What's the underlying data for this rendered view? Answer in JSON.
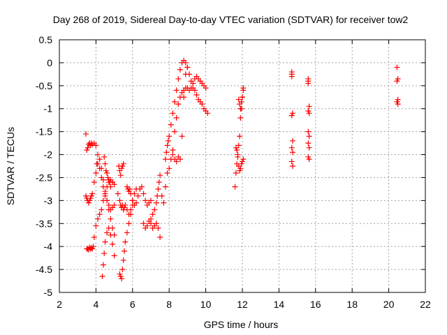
{
  "chart_data": {
    "type": "scatter",
    "title": "Day 268 of 2019, Sidereal Day-to-day VTEC variation (SDTVAR) for receiver tow2",
    "xlabel": "GPS time / hours",
    "ylabel": "SDTVAR / TECUs",
    "xlim": [
      2,
      22
    ],
    "ylim": [
      -5,
      0.5
    ],
    "xticks": [
      2,
      4,
      6,
      8,
      10,
      12,
      14,
      16,
      18,
      20,
      22
    ],
    "yticks": [
      -5,
      -4.5,
      -4,
      -3.5,
      -3,
      -2.5,
      -2,
      -1.5,
      -1,
      -0.5,
      0,
      0.5
    ],
    "grid": true,
    "marker": "+",
    "color": "#ff0000",
    "series": [
      {
        "name": "SDTVAR",
        "segments": [
          {
            "x": [
              3.45,
              3.5,
              3.55,
              3.6,
              3.65,
              3.7,
              3.75,
              3.8,
              3.9,
              4.0,
              4.1,
              4.2,
              4.3,
              4.4,
              4.5,
              4.6,
              4.7,
              4.8,
              4.9,
              5.0
            ],
            "y": [
              -1.55,
              -1.9,
              -1.85,
              -1.78,
              -1.75,
              -1.8,
              -1.75,
              -1.78,
              -1.75,
              -1.8,
              -2.0,
              -2.1,
              -2.3,
              -2.55,
              -2.8,
              -3.0,
              -3.2,
              -3.4,
              -3.6,
              -3.75
            ]
          },
          {
            "x": [
              3.45,
              3.5,
              3.55,
              3.6,
              3.65,
              3.7,
              3.75,
              3.8,
              3.9,
              4.0,
              4.05,
              4.1,
              4.2,
              4.3,
              4.4,
              4.5,
              4.6,
              4.7,
              4.8,
              4.9,
              5.0
            ],
            "y": [
              -2.9,
              -2.95,
              -3.0,
              -3.05,
              -3.0,
              -2.95,
              -2.9,
              -2.85,
              -2.6,
              -2.4,
              -2.2,
              -2.2,
              -2.3,
              -2.5,
              -2.7,
              -2.9,
              -3.0,
              -3.1,
              -3.2,
              -3.15,
              -3.1
            ]
          },
          {
            "x": [
              3.5,
              3.55,
              3.6,
              3.65,
              3.7,
              3.75,
              3.8,
              3.85,
              3.9,
              4.0,
              4.1,
              4.2,
              4.3,
              4.4,
              4.5,
              4.6,
              4.7,
              4.8,
              4.9
            ],
            "y": [
              -4.05,
              -4.05,
              -4.07,
              -4.02,
              -4.05,
              -4.03,
              -4.05,
              -4.0,
              -3.8,
              -3.55,
              -3.4,
              -3.3,
              -3.2,
              -3.0,
              -2.85,
              -2.7,
              -2.6,
              -2.55,
              -2.6
            ]
          },
          {
            "x": [
              4.35,
              4.4,
              4.45,
              4.5,
              4.6,
              4.7,
              4.8,
              4.9,
              5.0
            ],
            "y": [
              -4.65,
              -4.4,
              -4.15,
              -3.9,
              -3.7,
              -3.6,
              -3.75,
              -3.95,
              -4.2
            ]
          },
          {
            "x": [
              4.45,
              4.5,
              4.55,
              4.6,
              4.65,
              4.7,
              4.75,
              4.8,
              4.9,
              5.0
            ],
            "y": [
              -2.05,
              -2.2,
              -2.35,
              -2.4,
              -2.5,
              -2.55,
              -2.6,
              -2.7,
              -2.6,
              -2.65
            ]
          },
          {
            "x": [
              5.3,
              5.35,
              5.4,
              5.45,
              5.5,
              5.55,
              5.6,
              5.7,
              5.8,
              5.9,
              6.0
            ],
            "y": [
              -4.6,
              -4.65,
              -4.7,
              -4.5,
              -4.3,
              -4.1,
              -3.9,
              -3.7,
              -3.5,
              -3.3,
              -3.1
            ]
          },
          {
            "x": [
              5.2,
              5.3,
              5.35,
              5.4,
              5.45,
              5.5,
              5.55,
              5.6,
              5.7,
              5.8,
              5.9,
              6.0,
              6.1,
              6.2
            ],
            "y": [
              -2.85,
              -3.0,
              -3.1,
              -3.15,
              -3.1,
              -3.2,
              -3.15,
              -3.1,
              -3.2,
              -3.3,
              -3.2,
              -3.0,
              -2.85,
              -2.75
            ]
          },
          {
            "x": [
              5.25,
              5.3,
              5.35,
              5.4,
              5.45,
              5.5
            ],
            "y": [
              -2.25,
              -2.35,
              -2.45,
              -2.3,
              -2.25,
              -2.2
            ]
          },
          {
            "x": [
              5.7,
              5.75,
              5.8,
              5.85,
              5.9,
              6.0,
              6.1,
              6.2,
              6.3,
              6.4,
              6.5,
              6.6,
              6.7,
              6.8,
              6.9,
              7.0
            ],
            "y": [
              -2.7,
              -2.75,
              -2.8,
              -2.75,
              -2.85,
              -3.0,
              -3.1,
              -3.05,
              -2.9,
              -2.75,
              -2.7,
              -2.85,
              -3.0,
              -3.1,
              -3.05,
              -3.0
            ]
          },
          {
            "x": [
              6.6,
              6.7,
              6.8,
              6.9,
              7.0,
              7.1,
              7.2,
              7.3,
              7.4,
              7.5
            ],
            "y": [
              -3.5,
              -3.6,
              -3.55,
              -3.45,
              -3.5,
              -3.6,
              -3.55,
              -3.5,
              -3.6,
              -3.8
            ]
          },
          {
            "x": [
              7.0,
              7.1,
              7.2,
              7.3,
              7.35,
              7.4,
              7.45,
              7.5,
              7.6,
              7.7,
              7.8
            ],
            "y": [
              -3.4,
              -3.3,
              -3.2,
              -3.05,
              -2.9,
              -2.75,
              -2.6,
              -2.45,
              -2.9,
              -3.05,
              -2.7
            ]
          },
          {
            "x": [
              7.8,
              7.85,
              7.9,
              7.95,
              8.0,
              8.1,
              8.2,
              8.3,
              8.4,
              8.5,
              8.6,
              8.7,
              8.8,
              8.9,
              9.0,
              9.1,
              9.2,
              9.3,
              9.4,
              9.5,
              9.6,
              9.7,
              9.8,
              9.9,
              10.0,
              10.1
            ],
            "y": [
              -2.1,
              -1.95,
              -1.8,
              -1.7,
              -1.6,
              -1.35,
              -1.1,
              -0.85,
              -0.6,
              -0.35,
              -0.15,
              0.0,
              0.05,
              0.0,
              -0.1,
              -0.25,
              -0.4,
              -0.55,
              -0.6,
              -0.7,
              -0.8,
              -0.85,
              -0.9,
              -1.0,
              -1.05,
              -1.1
            ]
          },
          {
            "x": [
              7.9,
              8.0,
              8.1,
              8.2,
              8.3,
              8.4,
              8.5,
              8.6,
              8.7,
              8.8,
              8.9,
              9.0,
              9.1,
              9.2,
              9.3,
              9.4,
              9.5,
              9.6,
              9.7,
              9.8,
              9.9,
              10.0
            ],
            "y": [
              -2.4,
              -2.3,
              -2.1,
              -1.9,
              -1.5,
              -1.2,
              -0.9,
              -0.75,
              -0.65,
              -0.6,
              -0.55,
              -0.55,
              -0.6,
              -0.55,
              -0.45,
              -0.35,
              -0.3,
              -0.35,
              -0.4,
              -0.45,
              -0.5,
              -0.55
            ]
          },
          {
            "x": [
              8.2,
              8.3,
              8.4,
              8.5,
              8.6,
              8.7,
              8.8,
              8.9,
              9.0
            ],
            "y": [
              -2.0,
              -2.1,
              -2.15,
              -2.05,
              -2.1,
              -1.6,
              -0.75,
              -0.25,
              -0.1
            ]
          },
          {
            "x": [
              11.6,
              11.65,
              11.7,
              11.75,
              11.8,
              11.85,
              11.9,
              11.95,
              12.0,
              12.05
            ],
            "y": [
              -2.7,
              -2.4,
              -2.2,
              -2.0,
              -1.8,
              -1.6,
              -1.2,
              -1.0,
              -0.75,
              -0.55
            ]
          },
          {
            "x": [
              11.65,
              11.7,
              11.75,
              11.8,
              11.85,
              11.9,
              11.95,
              12.0,
              12.05
            ],
            "y": [
              -1.85,
              -1.9,
              -2.05,
              -2.25,
              -2.35,
              -2.3,
              -2.2,
              -2.15,
              -2.1
            ]
          },
          {
            "x": [
              11.8,
              11.85,
              11.9,
              11.95,
              12.0,
              12.05
            ],
            "y": [
              -0.8,
              -0.9,
              -1.0,
              -0.85,
              -0.75,
              -0.6
            ]
          },
          {
            "x": [
              14.7,
              14.7,
              14.75,
              14.7,
              14.75,
              14.7,
              14.75,
              14.7,
              14.75,
              14.7
            ],
            "y": [
              -0.2,
              -0.3,
              -1.1,
              -1.15,
              -1.7,
              -1.85,
              -1.95,
              -2.15,
              -2.25,
              -0.25
            ]
          },
          {
            "x": [
              15.6,
              15.6,
              15.65,
              15.6,
              15.65,
              15.6,
              15.65,
              15.6,
              15.65,
              15.6,
              15.65,
              15.6
            ],
            "y": [
              -0.35,
              -0.45,
              -0.95,
              -1.05,
              -1.1,
              -1.5,
              -1.6,
              -1.75,
              -1.85,
              -2.05,
              -2.1,
              -0.4
            ]
          },
          {
            "x": [
              20.45,
              20.5,
              20.45,
              20.5,
              20.45,
              20.5
            ],
            "y": [
              -0.1,
              -0.35,
              -0.4,
              -0.8,
              -0.85,
              -0.9
            ]
          }
        ]
      }
    ]
  }
}
